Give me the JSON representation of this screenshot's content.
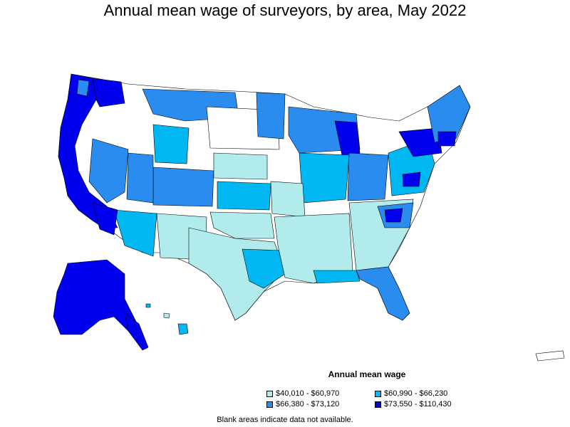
{
  "title": "Annual mean wage of surveyors, by area, May 2022",
  "legend": {
    "title": "Annual mean wage",
    "items": [
      {
        "label": "$40,010 - $60,970",
        "color": "#b2ebeb"
      },
      {
        "label": "$60,990 - $66,230",
        "color": "#00b7f1"
      },
      {
        "label": "$66,380 - $73,120",
        "color": "#2b8cf0"
      },
      {
        "label": "$73,550 - $110,430",
        "color": "#0000ee"
      }
    ]
  },
  "note": "Blank areas indicate data not available.",
  "colors": {
    "tier1": "#b2ebeb",
    "tier2": "#00b7f1",
    "tier3": "#2b8cf0",
    "tier4": "#0000ee",
    "blank": "#ffffff",
    "border": "#000000"
  }
}
